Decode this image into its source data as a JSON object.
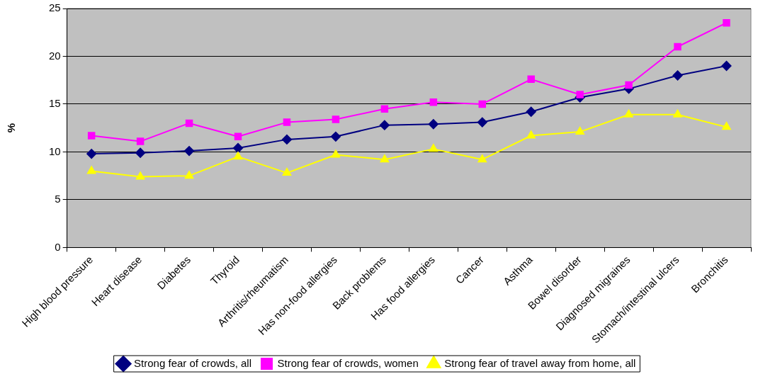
{
  "chart_data": {
    "type": "line",
    "ylabel": "%",
    "categories": [
      "High blood pressure",
      "Heart disease",
      "Diabetes",
      "Thyroid",
      "Arthritis/rheumatism",
      "Has non-food allergies",
      "Back problems",
      "Has food allergies",
      "Cancer",
      "Asthma",
      "Bowel disorder",
      "Diagnosed migraines",
      "Stomach/intestinal ulcers",
      "Bronchitis"
    ],
    "series": [
      {
        "name": "Strong fear of crowds, all",
        "color": "#000080",
        "marker": "diamond",
        "values": [
          9.8,
          9.9,
          10.1,
          10.4,
          11.3,
          11.6,
          12.8,
          12.9,
          13.1,
          14.2,
          15.7,
          16.6,
          18.0,
          19.0
        ]
      },
      {
        "name": "Strong fear of crowds, women",
        "color": "#ff00ff",
        "marker": "square",
        "values": [
          11.7,
          11.1,
          13.0,
          11.6,
          13.1,
          13.4,
          14.5,
          15.2,
          15.0,
          17.6,
          16.0,
          17.0,
          21.0,
          23.5
        ]
      },
      {
        "name": "Strong fear of travel away from home, all",
        "color": "#ffff00",
        "marker": "triangle",
        "values": [
          8.0,
          7.4,
          7.5,
          9.5,
          7.8,
          9.7,
          9.2,
          10.3,
          9.2,
          11.7,
          12.1,
          13.9,
          13.9,
          12.6
        ]
      }
    ],
    "ylim": [
      0,
      25
    ],
    "yticks": [
      0,
      5,
      10,
      15,
      20,
      25
    ],
    "grid": "y",
    "legend": "bottom",
    "line_style": "solid"
  }
}
